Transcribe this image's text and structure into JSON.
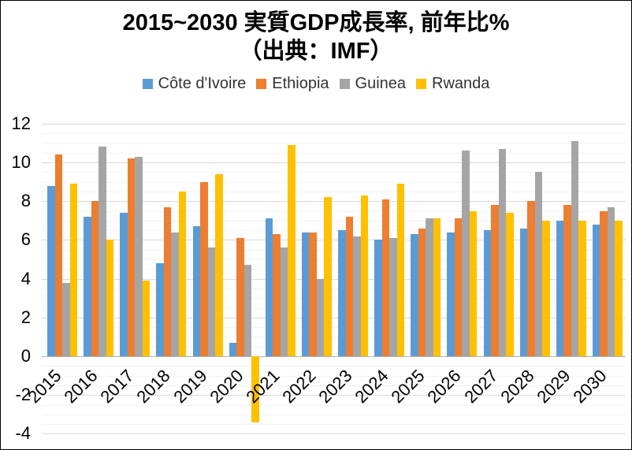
{
  "title": {
    "line1": "2015~2030 実質GDP成長率, 前年比%",
    "line2": "（出典：IMF）"
  },
  "chart_data": {
    "type": "bar",
    "title": "2015~2030 実質GDP成長率, 前年比%（出典：IMF）",
    "categories": [
      "2015",
      "2016",
      "2017",
      "2018",
      "2019",
      "2020",
      "2021",
      "2022",
      "2023",
      "2024",
      "2025",
      "2026",
      "2027",
      "2028",
      "2029",
      "2030"
    ],
    "series": [
      {
        "name": "Côte d'Ivoire",
        "color": "#5B9BD5",
        "values": [
          8.8,
          7.2,
          7.4,
          4.8,
          6.7,
          0.7,
          7.1,
          6.4,
          6.5,
          6.0,
          6.3,
          6.4,
          6.5,
          6.6,
          7.0,
          6.8
        ]
      },
      {
        "name": "Ethiopia",
        "color": "#ED7D31",
        "values": [
          10.4,
          8.0,
          10.2,
          7.7,
          9.0,
          6.1,
          6.3,
          6.4,
          7.2,
          8.1,
          6.6,
          7.1,
          7.8,
          8.0,
          7.8,
          7.5
        ]
      },
      {
        "name": "Guinea",
        "color": "#A5A5A5",
        "values": [
          3.8,
          10.8,
          10.3,
          6.4,
          5.6,
          4.7,
          5.6,
          4.0,
          6.2,
          6.1,
          7.1,
          10.6,
          10.7,
          9.5,
          11.1,
          7.7
        ]
      },
      {
        "name": "Rwanda",
        "color": "#FFC000",
        "values": [
          8.9,
          6.0,
          3.9,
          8.5,
          9.4,
          -3.4,
          10.9,
          8.2,
          8.3,
          8.9,
          7.1,
          7.5,
          7.4,
          7.0,
          7.0,
          7.0
        ]
      }
    ],
    "xlabel": "",
    "ylabel": "",
    "ylim": [
      -4,
      12
    ],
    "y_ticks": [
      12,
      10,
      8,
      6,
      4,
      2,
      0,
      -2,
      -4
    ],
    "gridlines": {
      "major_step": 2,
      "minor_step": 0.5,
      "horizontal_only": true
    },
    "legend_position": "top",
    "x_label_rotation_deg": -45
  }
}
